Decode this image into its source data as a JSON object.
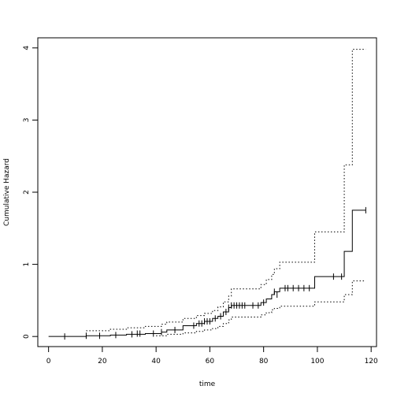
{
  "chart_data": {
    "type": "line",
    "title": "",
    "xlabel": "time",
    "ylabel": "Cumulative Hazard",
    "xlim": [
      -4,
      122
    ],
    "ylim": [
      -0.14,
      4.14
    ],
    "x_ticks": [
      0,
      20,
      40,
      60,
      80,
      100,
      120
    ],
    "y_ticks": [
      0,
      1,
      2,
      3,
      4
    ],
    "grid": false,
    "legend": "none",
    "series": [
      {
        "role": "estimate",
        "style": "solid",
        "x": [
          0,
          14,
          23,
          29,
          36,
          42,
          44,
          50,
          55,
          58,
          61,
          63,
          65,
          67,
          68,
          79,
          81,
          83,
          84,
          86,
          89,
          99,
          110,
          113,
          118
        ],
        "y": [
          0,
          0.01,
          0.02,
          0.03,
          0.04,
          0.06,
          0.09,
          0.15,
          0.18,
          0.21,
          0.25,
          0.28,
          0.34,
          0.4,
          0.43,
          0.47,
          0.52,
          0.58,
          0.62,
          0.67,
          0.67,
          0.83,
          1.18,
          1.75,
          1.75
        ]
      },
      {
        "role": "upper-bound",
        "style": "dotted",
        "x": [
          14,
          23,
          29,
          36,
          42,
          44,
          50,
          55,
          58,
          61,
          63,
          65,
          67,
          68,
          79,
          81,
          83,
          84,
          86,
          99,
          110,
          113,
          118
        ],
        "y": [
          0.08,
          0.1,
          0.12,
          0.14,
          0.17,
          0.2,
          0.25,
          0.29,
          0.32,
          0.36,
          0.41,
          0.48,
          0.56,
          0.66,
          0.72,
          0.79,
          0.86,
          0.94,
          1.03,
          1.45,
          2.38,
          3.98,
          3.98
        ]
      },
      {
        "role": "lower-bound",
        "style": "dotted",
        "x": [
          40,
          44,
          50,
          55,
          58,
          61,
          63,
          65,
          67,
          68,
          79,
          81,
          83,
          84,
          86,
          99,
          110,
          113,
          118
        ],
        "y": [
          0.01,
          0.03,
          0.05,
          0.07,
          0.09,
          0.11,
          0.14,
          0.18,
          0.23,
          0.27,
          0.3,
          0.33,
          0.37,
          0.39,
          0.42,
          0.48,
          0.58,
          0.77,
          0.77
        ]
      }
    ],
    "censor_marks": {
      "x": [
        6,
        14,
        19,
        25,
        31,
        33,
        34,
        39,
        42,
        47,
        54,
        56,
        57,
        58,
        59,
        60,
        62,
        64,
        66,
        67,
        68,
        69,
        70,
        71,
        72,
        73,
        76,
        78,
        80,
        84,
        85,
        88,
        89,
        91,
        93,
        95,
        97,
        106,
        109,
        118
      ],
      "y": [
        0,
        0.01,
        0.01,
        0.02,
        0.03,
        0.04,
        0.04,
        0.04,
        0.06,
        0.09,
        0.15,
        0.18,
        0.18,
        0.21,
        0.21,
        0.21,
        0.25,
        0.28,
        0.34,
        0.4,
        0.43,
        0.43,
        0.43,
        0.43,
        0.43,
        0.43,
        0.43,
        0.43,
        0.47,
        0.62,
        0.58,
        0.67,
        0.67,
        0.67,
        0.67,
        0.67,
        0.67,
        0.83,
        0.83,
        1.75
      ]
    }
  }
}
